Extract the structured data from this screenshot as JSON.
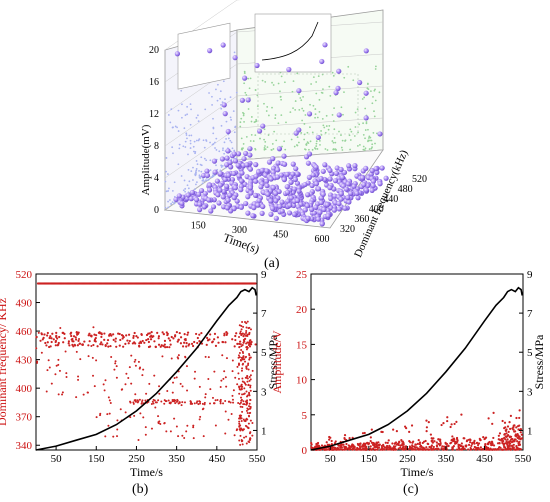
{
  "captions": {
    "a": "(a)",
    "b": "(b)",
    "c": "(c)"
  },
  "colors": {
    "acoustic_points": "#cc2222",
    "stress_curve": "#000000",
    "left_axis_text": "#cc1111",
    "bubbles": "#9f7ff0",
    "projection_left": "#a9b3f0",
    "projection_back": "#97d39a",
    "grid": "#c8c8c8"
  },
  "chart_data": [
    {
      "id": "a",
      "type": "scatter",
      "title": "",
      "xlabel": "Time(s)",
      "ylabel": "Dominant frequency(kHz)",
      "zlabel": "Amplitude(mV)",
      "x_ticks": [
        "150",
        "300",
        "450",
        "600"
      ],
      "y_ticks": [
        "320",
        "360",
        "400",
        "440",
        "480",
        "520"
      ],
      "z_ticks": [
        "0",
        "4",
        "8",
        "12",
        "16",
        "20"
      ],
      "xlim": [
        0,
        600
      ],
      "ylim": [
        320,
        520
      ],
      "zlim": [
        0,
        20
      ]
    },
    {
      "id": "b",
      "type": "scatter",
      "xlabel": "Time/s",
      "ylabel": "Dominant frequency/ KHz",
      "y2label": "Stress/MPa",
      "x_ticks": [
        "50",
        "150",
        "250",
        "350",
        "450",
        "550"
      ],
      "y_ticks": [
        "340",
        "370",
        "400",
        "430",
        "460",
        "490",
        "520"
      ],
      "y2_ticks": [
        "1",
        "3",
        "5",
        "7",
        "9"
      ],
      "xlim": [
        0,
        550
      ],
      "ylim": [
        335,
        520
      ],
      "y2lim": [
        0,
        9
      ],
      "scatter_bands": [
        {
          "value": 510,
          "x_range": [
            0,
            550
          ]
        },
        {
          "value": 445,
          "x_range": [
            0,
            550
          ]
        },
        {
          "value": 455,
          "x_range": [
            0,
            550
          ]
        },
        {
          "value": 385,
          "x_range": [
            200,
            540
          ]
        },
        {
          "value": 360,
          "x_range": [
            380,
            540
          ]
        }
      ],
      "stress_curve": [
        [
          0,
          0
        ],
        [
          50,
          0.2
        ],
        [
          100,
          0.5
        ],
        [
          150,
          0.8
        ],
        [
          200,
          1.3
        ],
        [
          250,
          2.0
        ],
        [
          300,
          2.9
        ],
        [
          350,
          4.0
        ],
        [
          400,
          5.2
        ],
        [
          450,
          6.6
        ],
        [
          480,
          7.4
        ],
        [
          500,
          7.8
        ],
        [
          510,
          8.1
        ],
        [
          520,
          8.2
        ],
        [
          530,
          8.1
        ],
        [
          538,
          8.3
        ],
        [
          545,
          8.2
        ],
        [
          548,
          7.9
        ]
      ]
    },
    {
      "id": "c",
      "type": "scatter",
      "xlabel": "Time/s",
      "ylabel": "Amplitude/V",
      "y2label": "Stress/MPa",
      "x_ticks": [
        "50",
        "150",
        "250",
        "350",
        "450",
        "550"
      ],
      "y_ticks": [
        "0",
        "5",
        "10",
        "15",
        "20",
        "25"
      ],
      "y2_ticks": [
        "1",
        "3",
        "5",
        "7",
        "9"
      ],
      "xlim": [
        0,
        550
      ],
      "ylim": [
        0,
        25
      ],
      "y2lim": [
        0,
        9
      ],
      "stress_curve": [
        [
          0,
          0
        ],
        [
          50,
          0.2
        ],
        [
          100,
          0.5
        ],
        [
          150,
          0.8
        ],
        [
          200,
          1.3
        ],
        [
          250,
          2.0
        ],
        [
          300,
          2.9
        ],
        [
          350,
          4.0
        ],
        [
          400,
          5.2
        ],
        [
          450,
          6.6
        ],
        [
          480,
          7.4
        ],
        [
          500,
          7.8
        ],
        [
          510,
          8.1
        ],
        [
          520,
          8.2
        ],
        [
          530,
          8.1
        ],
        [
          538,
          8.3
        ],
        [
          545,
          8.2
        ],
        [
          548,
          7.9
        ]
      ]
    }
  ]
}
